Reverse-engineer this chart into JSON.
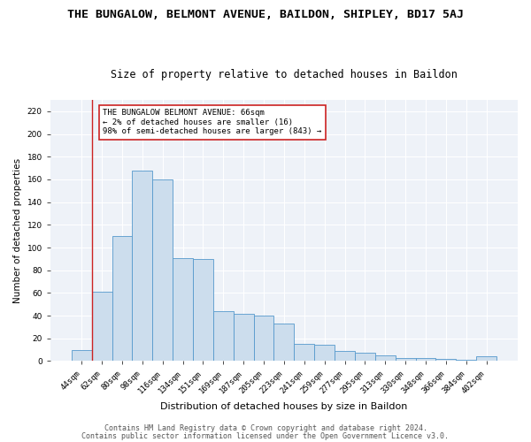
{
  "title": "THE BUNGALOW, BELMONT AVENUE, BAILDON, SHIPLEY, BD17 5AJ",
  "subtitle": "Size of property relative to detached houses in Baildon",
  "xlabel": "Distribution of detached houses by size in Baildon",
  "ylabel": "Number of detached properties",
  "categories": [
    "44sqm",
    "62sqm",
    "80sqm",
    "98sqm",
    "116sqm",
    "134sqm",
    "151sqm",
    "169sqm",
    "187sqm",
    "205sqm",
    "223sqm",
    "241sqm",
    "259sqm",
    "277sqm",
    "295sqm",
    "313sqm",
    "330sqm",
    "348sqm",
    "366sqm",
    "384sqm",
    "402sqm"
  ],
  "values": [
    10,
    61,
    110,
    168,
    160,
    91,
    90,
    44,
    42,
    40,
    33,
    15,
    14,
    9,
    7,
    5,
    3,
    3,
    2,
    1,
    4
  ],
  "bar_color": "#ccdded",
  "bar_edge_color": "#5599cc",
  "ylim": [
    0,
    230
  ],
  "yticks": [
    0,
    20,
    40,
    60,
    80,
    100,
    120,
    140,
    160,
    180,
    200,
    220
  ],
  "red_line_index": 1,
  "red_line_color": "#cc2222",
  "annotation_text": "THE BUNGALOW BELMONT AVENUE: 66sqm\n← 2% of detached houses are smaller (16)\n98% of semi-detached houses are larger (843) →",
  "annotation_box_color": "white",
  "annotation_box_edge": "#cc2222",
  "footer_line1": "Contains HM Land Registry data © Crown copyright and database right 2024.",
  "footer_line2": "Contains public sector information licensed under the Open Government Licence v3.0.",
  "bg_color": "#ffffff",
  "plot_bg_color": "#eef2f8",
  "grid_color": "#ffffff",
  "title_fontsize": 9.5,
  "subtitle_fontsize": 8.5,
  "xlabel_fontsize": 8,
  "ylabel_fontsize": 7.5,
  "tick_fontsize": 6.5,
  "annot_fontsize": 6.5,
  "footer_fontsize": 6
}
